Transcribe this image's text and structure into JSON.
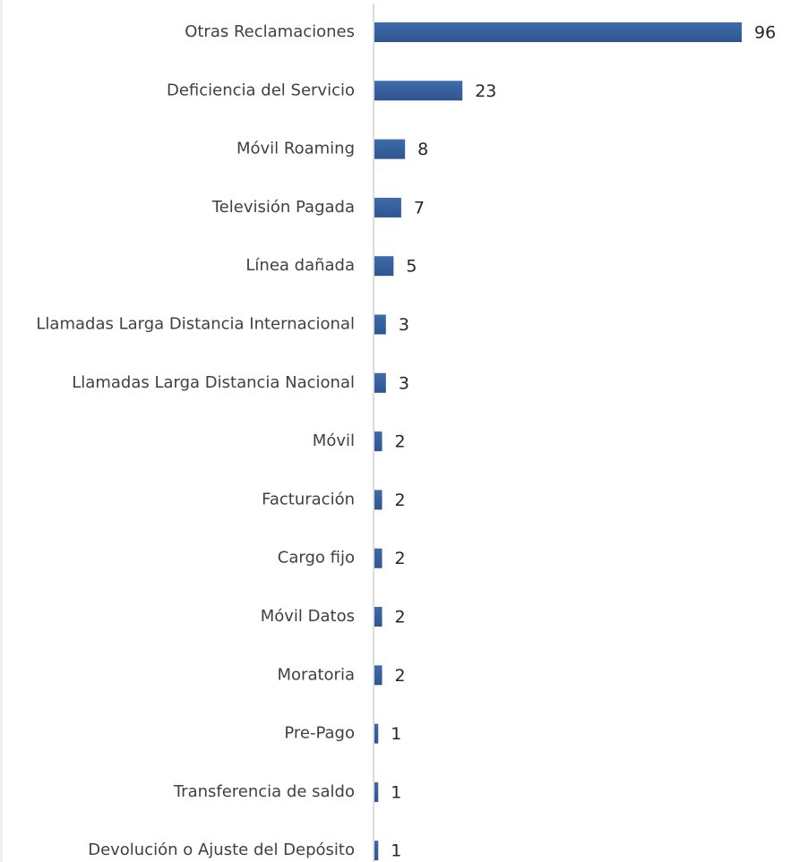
{
  "chart_data": {
    "type": "bar",
    "orientation": "horizontal",
    "categories": [
      "Otras Reclamaciones",
      "Deficiencia del Servicio",
      "Móvil Roaming",
      "Televisión Pagada",
      "Línea dañada",
      "Llamadas Larga Distancia Internacional",
      "Llamadas Larga Distancia Nacional",
      "Móvil",
      "Facturación",
      "Cargo fijo",
      "Móvil Datos",
      "Moratoria",
      "Pre-Pago",
      "Transferencia de saldo",
      "Devolución o Ajuste del Depósito"
    ],
    "values": [
      96,
      23,
      8,
      7,
      5,
      3,
      3,
      2,
      2,
      2,
      2,
      2,
      1,
      1,
      1
    ],
    "title": "",
    "xlabel": "",
    "ylabel": "",
    "xlim": [
      0,
      96
    ],
    "grid": false,
    "legend": "none",
    "data_labels": true,
    "colors": {
      "bar": "#3E6BAA",
      "bar_dark": "#2F5590",
      "axis": "#d0d0d0",
      "category_text": "#404040",
      "value_text": "#262626"
    }
  }
}
